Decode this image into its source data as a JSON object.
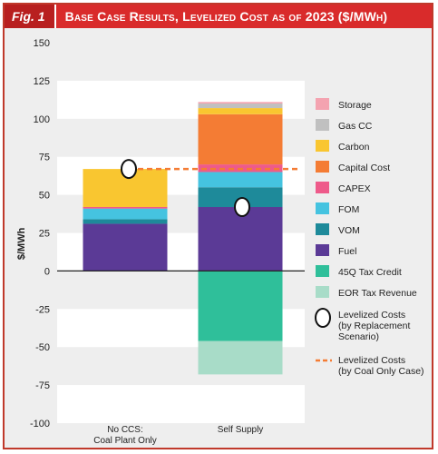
{
  "header": {
    "fig": "Fig. 1",
    "title": "Base Case Results, Levelized Cost as of 2023 ($/MWh)"
  },
  "chart_data": {
    "type": "bar",
    "stacked": true,
    "ylabel": "$/MWh",
    "ylim": [
      -100,
      150
    ],
    "yticks": [
      150,
      125,
      100,
      75,
      50,
      25,
      0,
      -25,
      -50,
      -75,
      -100
    ],
    "categories": [
      "No CCS: Coal Plant Only",
      "Self Supply"
    ],
    "category_lines": [
      [
        "No CCS:",
        "Coal Plant Only"
      ],
      [
        "Self Supply"
      ]
    ],
    "series": [
      {
        "name": "Fuel",
        "color": "#5b3a96",
        "values": [
          31,
          42
        ]
      },
      {
        "name": "VOM",
        "color": "#1e8a9a",
        "values": [
          3,
          13
        ]
      },
      {
        "name": "FOM",
        "color": "#45c3e0",
        "values": [
          7,
          10
        ]
      },
      {
        "name": "CAPEX",
        "color": "#ee5a8a",
        "values": [
          1,
          5
        ]
      },
      {
        "name": "Capital Cost",
        "color": "#f47c34",
        "values": [
          0,
          33
        ]
      },
      {
        "name": "Carbon",
        "color": "#f9c630",
        "values": [
          25,
          4
        ]
      },
      {
        "name": "Gas CC",
        "color": "#c0c0c0",
        "values": [
          0,
          3
        ]
      },
      {
        "name": "Storage",
        "color": "#f4a3b0",
        "values": [
          0,
          1
        ]
      },
      {
        "name": "45Q Tax Credit",
        "color": "#2fbf9a",
        "values": [
          0,
          -46
        ]
      },
      {
        "name": "EOR Tax Revenue",
        "color": "#a8dcc8",
        "values": [
          0,
          -22
        ]
      }
    ],
    "levelized_costs": {
      "name": [
        "Levelized Costs",
        "(by Replacement",
        "Scenario)"
      ],
      "values": [
        67,
        42
      ]
    },
    "coal_only_line": {
      "name": [
        "Levelized Costs",
        "(by Coal Only Case)"
      ],
      "value": 67,
      "color": "#f47c34"
    },
    "legend_order": [
      "Storage",
      "Gas CC",
      "Carbon",
      "Capital Cost",
      "CAPEX",
      "FOM",
      "VOM",
      "Fuel",
      "45Q Tax Credit",
      "EOR Tax Revenue"
    ]
  }
}
